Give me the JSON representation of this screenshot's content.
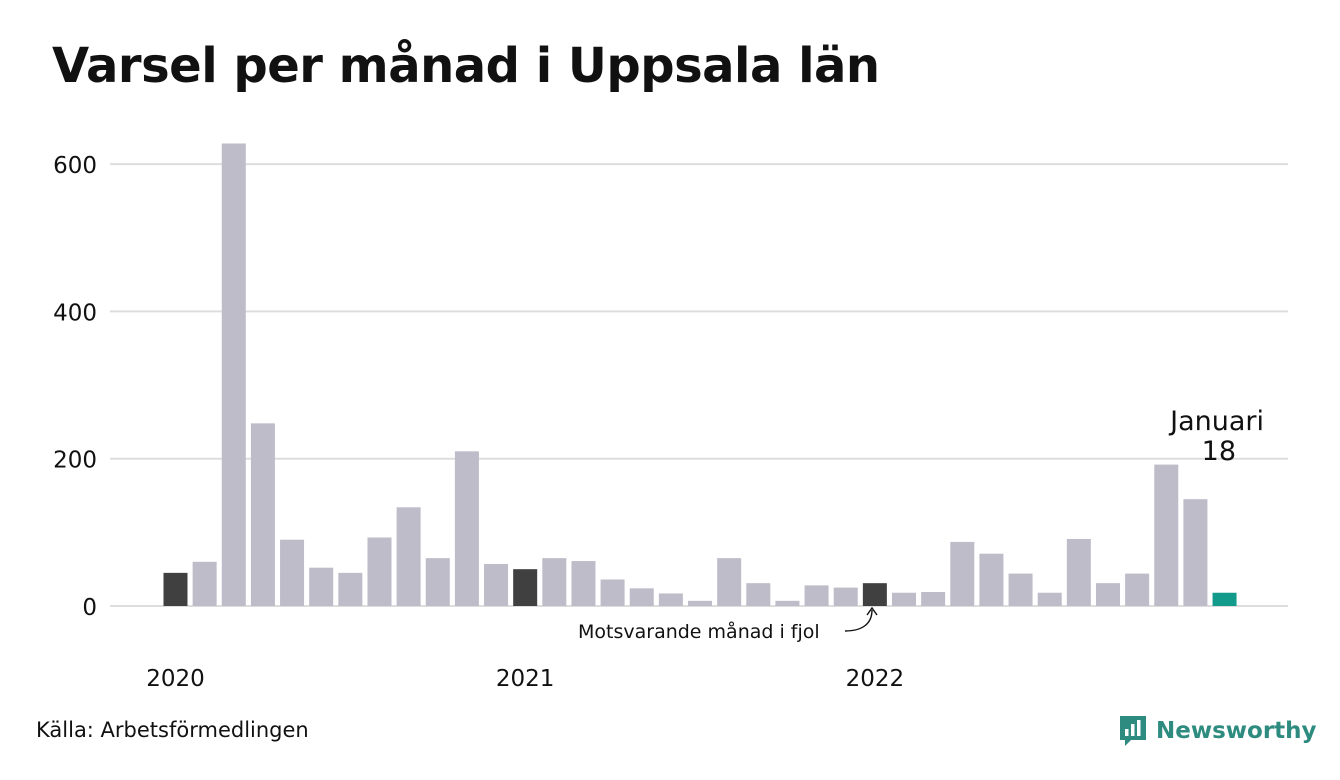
{
  "title": "Varsel per månad i Uppsala län",
  "source": "Källa: Arbetsförmedlingen",
  "brand": {
    "name": "Newsworthy",
    "icon": "newsworthy-logo-icon",
    "color": "#2e8b80"
  },
  "annotations": {
    "latest_month": "Januari",
    "latest_value": "18",
    "comparison": "Motsvarande månad i fjol"
  },
  "colors": {
    "bar": "#bdbcc8",
    "comparison": "#404040",
    "latest": "#129a8a",
    "grid": "#dddddd"
  },
  "chart_data": {
    "type": "bar",
    "title": "Varsel per månad i Uppsala län",
    "xlabel": "",
    "ylabel": "",
    "ylim": [
      0,
      630
    ],
    "yticks": [
      0,
      200,
      400,
      600
    ],
    "grid": true,
    "year_labels": [
      {
        "label": "2020",
        "index": 0
      },
      {
        "label": "2021",
        "index": 12
      },
      {
        "label": "2022",
        "index": 24
      }
    ],
    "categories": [
      "2020-01",
      "2020-02",
      "2020-03",
      "2020-04",
      "2020-05",
      "2020-06",
      "2020-07",
      "2020-08",
      "2020-09",
      "2020-10",
      "2020-11",
      "2020-12",
      "2021-01",
      "2021-02",
      "2021-03",
      "2021-04",
      "2021-05",
      "2021-06",
      "2021-07",
      "2021-08",
      "2021-09",
      "2021-10",
      "2021-11",
      "2021-12",
      "2022-01",
      "2022-02",
      "2022-03",
      "2022-04",
      "2022-05",
      "2022-06",
      "2022-07",
      "2022-08",
      "2022-09",
      "2022-10",
      "2022-11",
      "2022-12",
      "2023-01"
    ],
    "values": [
      45,
      60,
      628,
      248,
      90,
      52,
      45,
      93,
      134,
      65,
      210,
      57,
      50,
      65,
      61,
      36,
      24,
      17,
      7,
      65,
      31,
      7,
      28,
      25,
      31,
      18,
      19,
      87,
      71,
      44,
      18,
      91,
      31,
      44,
      192,
      145,
      18
    ],
    "highlight_comparison": [
      0,
      12,
      24
    ],
    "highlight_latest": 36
  }
}
